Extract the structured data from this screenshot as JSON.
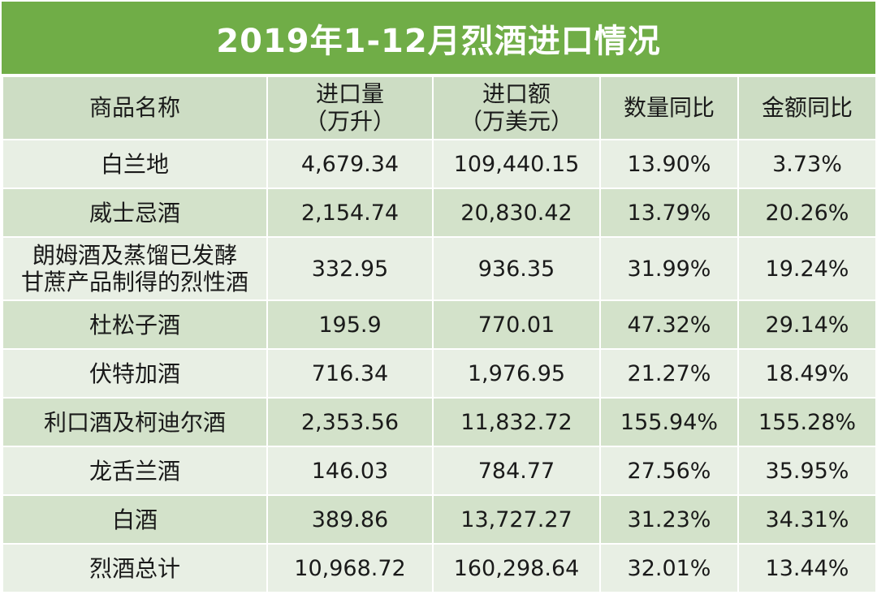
{
  "title": "2019年1-12月烈酒进口情况",
  "headers": {
    "name": "商品名称",
    "volume_line1": "进口量",
    "volume_line2": "（万升）",
    "amount_line1": "进口额",
    "amount_line2": "（万美元）",
    "volume_yoy": "数量同比",
    "amount_yoy": "金额同比"
  },
  "rows": [
    {
      "name": "白兰地",
      "volume": "4,679.34",
      "amount": "109,440.15",
      "volume_yoy": "13.90%",
      "amount_yoy": "3.73%"
    },
    {
      "name": "威士忌酒",
      "volume": "2,154.74",
      "amount": "20,830.42",
      "volume_yoy": "13.79%",
      "amount_yoy": "20.26%"
    },
    {
      "name_line1": "朗姆酒及蒸馏已发酵",
      "name_line2": "甘蔗产品制得的烈性酒",
      "volume": "332.95",
      "amount": "936.35",
      "volume_yoy": "31.99%",
      "amount_yoy": "19.24%"
    },
    {
      "name": "杜松子酒",
      "volume": "195.9",
      "amount": "770.01",
      "volume_yoy": "47.32%",
      "amount_yoy": "29.14%"
    },
    {
      "name": "伏特加酒",
      "volume": "716.34",
      "amount": "1,976.95",
      "volume_yoy": "21.27%",
      "amount_yoy": "18.49%"
    },
    {
      "name": "利口酒及柯迪尔酒",
      "volume": "2,353.56",
      "amount": "11,832.72",
      "volume_yoy": "155.94%",
      "amount_yoy": "155.28%"
    },
    {
      "name": "龙舌兰酒",
      "volume": "146.03",
      "amount": "784.77",
      "volume_yoy": "27.56%",
      "amount_yoy": "35.95%"
    },
    {
      "name": "白酒",
      "volume": "389.86",
      "amount": "13,727.27",
      "volume_yoy": "31.23%",
      "amount_yoy": "34.31%"
    },
    {
      "name": "烈酒总计",
      "volume": "10,968.72",
      "amount": "160,298.64",
      "volume_yoy": "32.01%",
      "amount_yoy": "13.44%"
    }
  ],
  "colors": {
    "title_bg": "#70ad47",
    "header_bg": "#cdddc4",
    "row_light": "#e8efe4",
    "row_dark": "#d3e2ca"
  }
}
